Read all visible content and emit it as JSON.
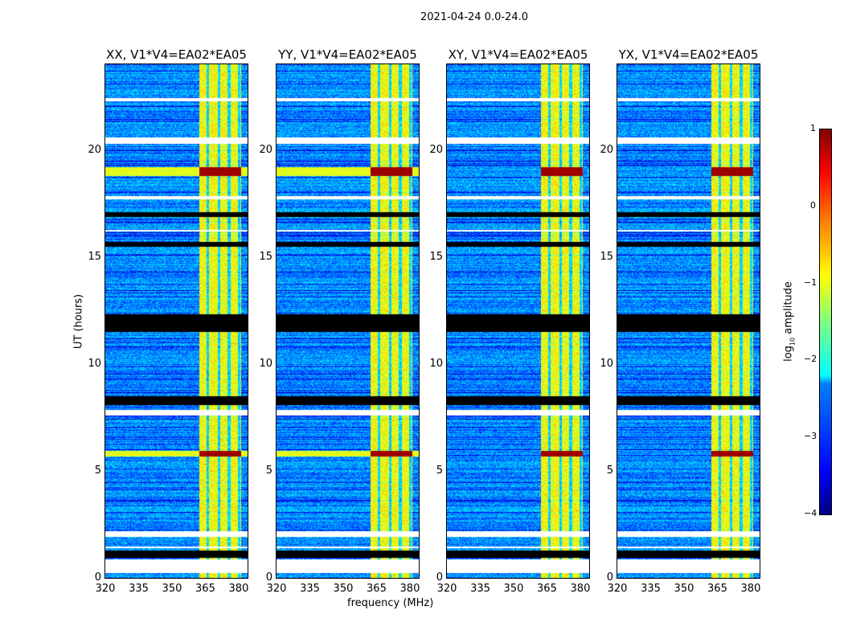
{
  "suptitle": "2021-04-24 0.0-24.0",
  "chart_data": {
    "type": "heatmap",
    "title": "2021-04-24 0.0-24.0",
    "xlabel": "frequency (MHz)",
    "ylabel": "UT (hours)",
    "xlim": [
      320,
      384
    ],
    "ylim": [
      0,
      24
    ],
    "xticks": [
      "320",
      "335",
      "350",
      "365",
      "380"
    ],
    "yticks": [
      "0",
      "5",
      "10",
      "15",
      "20"
    ],
    "panels": [
      {
        "title": "XX, V1*V4=EA02*EA05"
      },
      {
        "title": "YY, V1*V4=EA02*EA05"
      },
      {
        "title": "XY, V1*V4=EA02*EA05"
      },
      {
        "title": "YX, V1*V4=EA02*EA05"
      }
    ],
    "colorbar": {
      "label_prefix": "log",
      "label_sub": "10",
      "label_suffix": " amplitude",
      "range": [
        -4,
        1
      ],
      "ticks": [
        "1",
        "0",
        "−1",
        "−2",
        "−3",
        "−4"
      ],
      "colormap": "jet"
    },
    "rfi_band_mhz": [
      362,
      381
    ],
    "rfi_band_log_amp": -0.9,
    "background_log_amp": -2.7,
    "flagged_white_hours": [
      [
        0.25,
        0.9
      ],
      [
        1.95,
        2.2
      ],
      [
        1.4,
        1.5
      ],
      [
        7.6,
        7.85
      ],
      [
        20.3,
        20.6
      ],
      [
        22.3,
        22.45
      ],
      [
        16.2,
        16.3
      ],
      [
        17.7,
        17.85
      ]
    ],
    "flagged_black_hours": [
      [
        0.95,
        1.3
      ],
      [
        8.1,
        8.5
      ],
      [
        11.5,
        12.35
      ],
      [
        16.9,
        17.1
      ],
      [
        15.5,
        15.7
      ]
    ],
    "strong_events_hours": [
      [
        18.8,
        19.2
      ],
      [
        5.7,
        5.95
      ]
    ]
  }
}
